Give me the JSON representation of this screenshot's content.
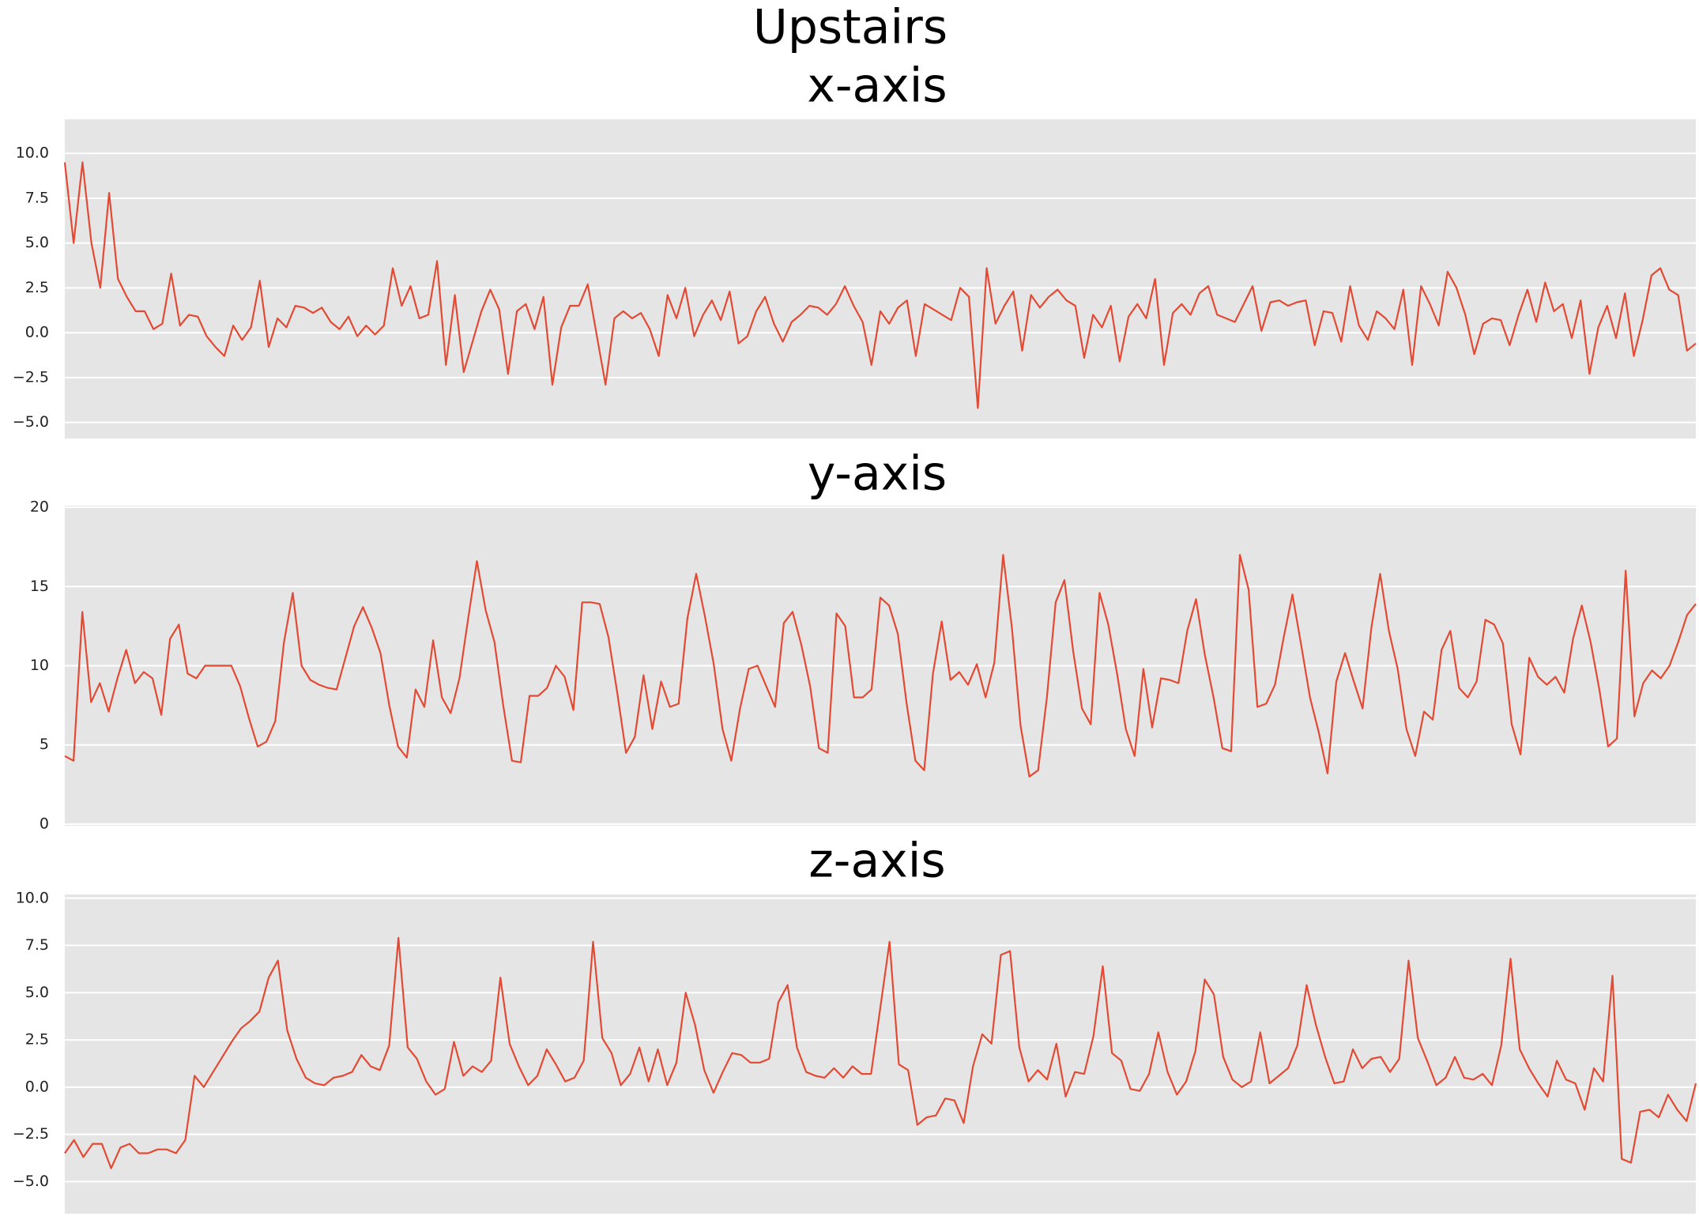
{
  "title": "Upstairs",
  "chart_data": [
    {
      "type": "line",
      "title": "x-axis",
      "color": "#e24a33",
      "grid": true,
      "ylim": [
        -5.9,
        11.9
      ],
      "yticks": [
        {
          "value": -5,
          "label": "−5.0"
        },
        {
          "value": -2.5,
          "label": "−2.5"
        },
        {
          "value": 0,
          "label": "0.0"
        },
        {
          "value": 2.5,
          "label": "2.5"
        },
        {
          "value": 5,
          "label": "5.0"
        },
        {
          "value": 7.5,
          "label": "7.5"
        },
        {
          "value": 10,
          "label": "10.0"
        }
      ],
      "values": [
        9.5,
        5,
        9.5,
        5,
        2.5,
        7.8,
        3,
        2,
        1.2,
        1.2,
        0.2,
        0.5,
        3.3,
        0.4,
        1,
        0.9,
        -0.2,
        -0.8,
        -1.3,
        0.4,
        -0.4,
        0.3,
        2.9,
        -0.8,
        0.8,
        0.3,
        1.5,
        1.4,
        1.1,
        1.4,
        0.6,
        0.2,
        0.9,
        -0.2,
        0.4,
        -0.1,
        0.4,
        3.6,
        1.5,
        2.6,
        0.8,
        1,
        4,
        -1.8,
        2.1,
        -2.2,
        -0.5,
        1.2,
        2.4,
        1.3,
        -2.3,
        1.2,
        1.6,
        0.2,
        2,
        -2.9,
        0.3,
        1.5,
        1.5,
        2.7,
        -0.1,
        -2.9,
        0.8,
        1.2,
        0.8,
        1.1,
        0.2,
        -1.3,
        2.1,
        0.8,
        2.5,
        -0.2,
        1,
        1.8,
        0.7,
        2.3,
        -0.6,
        -0.2,
        1.2,
        2,
        0.5,
        -0.5,
        0.6,
        1,
        1.5,
        1.4,
        1,
        1.6,
        2.6,
        1.5,
        0.6,
        -1.8,
        1.2,
        0.5,
        1.4,
        1.8,
        -1.3,
        1.6,
        1.3,
        1,
        0.7,
        2.5,
        2,
        -4.2,
        3.6,
        0.5,
        1.5,
        2.3,
        -1,
        2.1,
        1.4,
        2,
        2.4,
        1.8,
        1.5,
        -1.4,
        1,
        0.3,
        1.5,
        -1.6,
        0.9,
        1.6,
        0.8,
        3,
        -1.8,
        1.1,
        1.6,
        1,
        2.2,
        2.6,
        1,
        0.8,
        0.6,
        1.6,
        2.6,
        0.1,
        1.7,
        1.8,
        1.5,
        1.7,
        1.8,
        -0.7,
        1.2,
        1.1,
        -0.5,
        2.6,
        0.4,
        -0.4,
        1.2,
        0.8,
        0.2,
        2.4,
        -1.8,
        2.6,
        1.6,
        0.4,
        3.4,
        2.5,
        1,
        -1.2,
        0.5,
        0.8,
        0.7,
        -0.7,
        1,
        2.4,
        0.6,
        2.8,
        1.2,
        1.6,
        -0.3,
        1.8,
        -2.3,
        0.3,
        1.5,
        -0.3,
        2.2,
        -1.3,
        0.7,
        3.2,
        3.6,
        2.4,
        2.1,
        -1,
        -0.6
      ]
    },
    {
      "type": "line",
      "title": "y-axis",
      "color": "#e24a33",
      "grid": true,
      "ylim": [
        -0.1,
        20.1
      ],
      "yticks": [
        0,
        5,
        10,
        15,
        20
      ],
      "values": [
        4.3,
        4,
        13.4,
        7.7,
        8.9,
        7.1,
        9.2,
        11,
        8.9,
        9.6,
        9.2,
        6.9,
        11.7,
        12.6,
        9.5,
        9.2,
        10,
        10,
        10,
        10,
        8.7,
        6.7,
        4.9,
        5.2,
        6.5,
        11.5,
        14.6,
        10,
        9.1,
        8.8,
        8.6,
        8.5,
        10.5,
        12.5,
        13.7,
        12.4,
        10.8,
        7.5,
        4.9,
        4.2,
        8.5,
        7.4,
        11.6,
        8,
        7,
        9.2,
        13,
        16.6,
        13.5,
        11.5,
        7.5,
        4,
        3.9,
        8.1,
        8.1,
        8.6,
        10,
        9.3,
        7.2,
        14,
        14,
        13.9,
        11.8,
        8.3,
        4.5,
        5.5,
        9.4,
        6,
        9,
        7.4,
        7.6,
        13,
        15.8,
        13.1,
        10.1,
        6,
        4,
        7.3,
        9.8,
        10,
        8.7,
        7.4,
        12.7,
        13.4,
        11.3,
        8.7,
        4.8,
        4.5,
        13.3,
        12.5,
        8,
        8,
        8.5,
        14.3,
        13.8,
        12,
        7.6,
        4,
        3.4,
        9.5,
        12.8,
        9.1,
        9.6,
        8.8,
        10.1,
        8,
        10.2,
        17,
        12.4,
        6.2,
        3,
        3.4,
        8,
        14,
        15.4,
        10.9,
        7.3,
        6.3,
        14.6,
        12.6,
        9.5,
        6,
        4.3,
        9.8,
        6.1,
        9.2,
        9.1,
        8.9,
        12.2,
        14.2,
        10.7,
        8,
        4.8,
        4.6,
        17,
        14.8,
        7.4,
        7.6,
        8.8,
        11.8,
        14.5,
        11.3,
        8,
        5.8,
        3.2,
        9,
        10.8,
        9,
        7.3,
        12.4,
        15.8,
        12.2,
        9.8,
        6,
        4.3,
        7.1,
        6.6,
        11,
        12.2,
        8.6,
        8,
        9,
        12.9,
        12.6,
        11.4,
        6.3,
        4.4,
        10.5,
        9.3,
        8.8,
        9.3,
        8.3,
        11.7,
        13.8,
        11.5,
        8.5,
        4.9,
        5.4,
        16,
        6.8,
        8.9,
        9.7,
        9.2,
        10,
        11.5,
        13.2,
        13.9
      ]
    },
    {
      "type": "line",
      "title": "z-axis",
      "color": "#e24a33",
      "grid": true,
      "ylim": [
        -6.7,
        10.2
      ],
      "yticks": [
        {
          "value": -5,
          "label": "−5.0"
        },
        {
          "value": -2.5,
          "label": "−2.5"
        },
        {
          "value": 0,
          "label": "0.0"
        },
        {
          "value": 2.5,
          "label": "2.5"
        },
        {
          "value": 5,
          "label": "5.0"
        },
        {
          "value": 7.5,
          "label": "7.5"
        },
        {
          "value": 10,
          "label": "10.0"
        }
      ],
      "values": [
        -3.5,
        -2.8,
        -3.7,
        -3,
        -3,
        -4.3,
        -3.2,
        -3,
        -3.5,
        -3.5,
        -3.3,
        -3.3,
        -3.5,
        -2.8,
        0.6,
        0,
        0.8,
        1.6,
        2.4,
        3.1,
        3.5,
        4,
        5.8,
        6.7,
        3,
        1.5,
        0.5,
        0.2,
        0.1,
        0.5,
        0.6,
        0.8,
        1.7,
        1.1,
        0.9,
        2.2,
        7.9,
        2.1,
        1.5,
        0.3,
        -0.4,
        -0.1,
        2.4,
        0.6,
        1.1,
        0.8,
        1.4,
        5.8,
        2.3,
        1.1,
        0.1,
        0.6,
        2,
        1.2,
        0.3,
        0.5,
        1.4,
        7.7,
        2.6,
        1.8,
        0.1,
        0.7,
        2.1,
        0.3,
        2,
        0.1,
        1.3,
        5,
        3.3,
        0.9,
        -0.3,
        0.8,
        1.8,
        1.7,
        1.3,
        1.3,
        1.5,
        4.5,
        5.4,
        2.1,
        0.8,
        0.6,
        0.5,
        1,
        0.5,
        1.1,
        0.7,
        0.7,
        4.2,
        7.7,
        1.2,
        0.9,
        -2,
        -1.6,
        -1.5,
        -0.6,
        -0.7,
        -1.9,
        1.1,
        2.8,
        2.3,
        7,
        7.2,
        2.1,
        0.3,
        0.9,
        0.4,
        2.3,
        -0.5,
        0.8,
        0.7,
        2.7,
        6.4,
        1.8,
        1.4,
        -0.1,
        -0.2,
        0.7,
        2.9,
        0.8,
        -0.4,
        0.3,
        1.9,
        5.7,
        4.9,
        1.6,
        0.4,
        0,
        0.3,
        2.9,
        0.2,
        0.6,
        1,
        2.2,
        5.4,
        3.3,
        1.6,
        0.2,
        0.3,
        2,
        1,
        1.5,
        1.6,
        0.8,
        1.5,
        6.7,
        2.6,
        1.4,
        0.1,
        0.5,
        1.6,
        0.5,
        0.4,
        0.7,
        0.1,
        2.2,
        6.8,
        2,
        1,
        0.2,
        -0.5,
        1.4,
        0.4,
        0.2,
        -1.2,
        1,
        0.3,
        5.9,
        -3.8,
        -4,
        -1.3,
        -1.2,
        -1.6,
        -0.4,
        -1.2,
        -1.8,
        0.2
      ]
    }
  ]
}
